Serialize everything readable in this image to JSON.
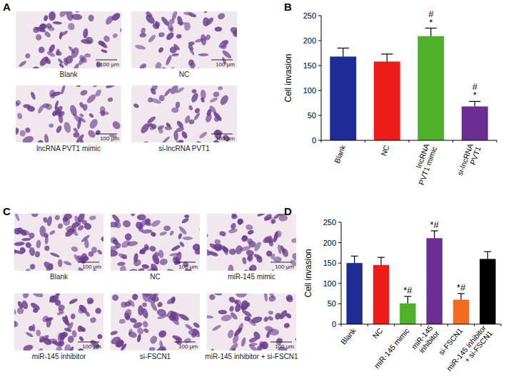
{
  "figure": {
    "image_panels": [
      {
        "label": "A",
        "images": [
          "Blank",
          "NC",
          "lncRNA PVT1 mimic",
          "si-lncRNA PVT1"
        ],
        "scale_bar": "100 μm"
      },
      {
        "label": "C",
        "images": [
          "Blank",
          "NC",
          "miR-145 mimic",
          "miR-145 inhibitor",
          "si-FSCN1",
          "miR-145 inhibitor + si-FSCN1"
        ],
        "scale_bar": "100 μm"
      }
    ],
    "chart_panels": [
      "B",
      "D"
    ]
  },
  "chart_data": [
    {
      "type": "bar",
      "y_label": "Cell invasion",
      "categories": [
        "Blank",
        "NC",
        "lncRNA PVT1 mimic",
        "si-lncRNA PVT1"
      ],
      "values": [
        168,
        158,
        209,
        68
      ],
      "errors": [
        17,
        15,
        16,
        10
      ],
      "colors": [
        "#1f2c96",
        "#ee1c16",
        "#4fb02a",
        "#6b2e92"
      ],
      "ylim": [
        0,
        250
      ],
      "yticks": [
        0,
        50,
        100,
        150,
        200,
        250
      ],
      "annotations": [
        {
          "index": 2,
          "lines": [
            "#",
            "*"
          ]
        },
        {
          "index": 3,
          "lines": [
            "#",
            "*"
          ]
        }
      ]
    },
    {
      "type": "bar",
      "y_label": "Cell invasion",
      "categories": [
        "Blank",
        "NC",
        "miR-145 mimic",
        "miR-145 inhibitor",
        "si-FSCN1",
        "miR-145 inhibitor + si-FSCN1"
      ],
      "values": [
        150,
        145,
        51,
        211,
        60,
        160
      ],
      "errors": [
        17,
        19,
        17,
        18,
        15,
        18
      ],
      "colors": [
        "#1f2c96",
        "#ee1c16",
        "#4fb02a",
        "#6b2e92",
        "#f36b1e",
        "#000000"
      ],
      "ylim": [
        0,
        250
      ],
      "yticks": [
        0,
        50,
        100,
        150,
        200,
        250
      ],
      "annotations": [
        {
          "index": 2,
          "lines": [
            "*#"
          ]
        },
        {
          "index": 3,
          "lines": [
            "*#"
          ]
        },
        {
          "index": 4,
          "lines": [
            "*#"
          ]
        }
      ]
    }
  ]
}
